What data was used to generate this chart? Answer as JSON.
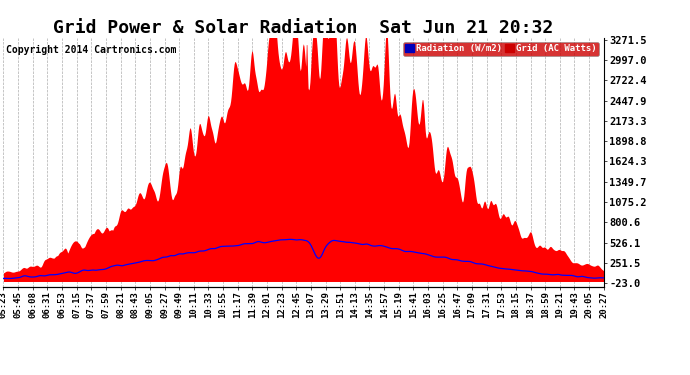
{
  "title": "Grid Power & Solar Radiation  Sat Jun 21 20:32",
  "copyright": "Copyright 2014 Cartronics.com",
  "yticks": [
    -23.0,
    251.5,
    526.1,
    800.6,
    1075.2,
    1349.7,
    1624.3,
    1898.8,
    2173.3,
    2447.9,
    2722.4,
    2997.0,
    3271.5
  ],
  "ytick_labels": [
    "-23.0",
    "251.5",
    "526.1",
    "800.6",
    "1075.2",
    "1349.7",
    "1624.3",
    "1898.8",
    "2173.3",
    "2447.9",
    "2722.4",
    "2997.0",
    "3271.5"
  ],
  "ymin": -23.0,
  "ymax": 3271.5,
  "background_color": "#ffffff",
  "plot_bg_color": "#ffffff",
  "grid_color": "#999999",
  "fill_color": "#ff0000",
  "line_color": "#0000ff",
  "title_fontsize": 13,
  "copyright_fontsize": 7,
  "xtick_fontsize": 6.5,
  "ytick_fontsize": 7.5,
  "xtick_labels": [
    "05:23",
    "05:45",
    "06:08",
    "06:31",
    "06:53",
    "07:15",
    "07:37",
    "07:59",
    "08:21",
    "08:43",
    "09:05",
    "09:27",
    "09:49",
    "10:11",
    "10:33",
    "10:55",
    "11:17",
    "11:39",
    "12:01",
    "12:23",
    "12:45",
    "13:07",
    "13:29",
    "13:51",
    "14:13",
    "14:35",
    "14:57",
    "15:19",
    "15:41",
    "16:03",
    "16:25",
    "16:47",
    "17:09",
    "17:31",
    "17:53",
    "18:15",
    "18:37",
    "18:59",
    "19:21",
    "19:43",
    "20:05",
    "20:27"
  ],
  "n_points": 1000,
  "solar_peak_idx": 0.515,
  "solar_sigma": 0.2,
  "solar_max": 3100.0,
  "grid_peak_idx": 0.5,
  "grid_sigma": 0.22,
  "grid_max": 560.0,
  "seed": 17
}
